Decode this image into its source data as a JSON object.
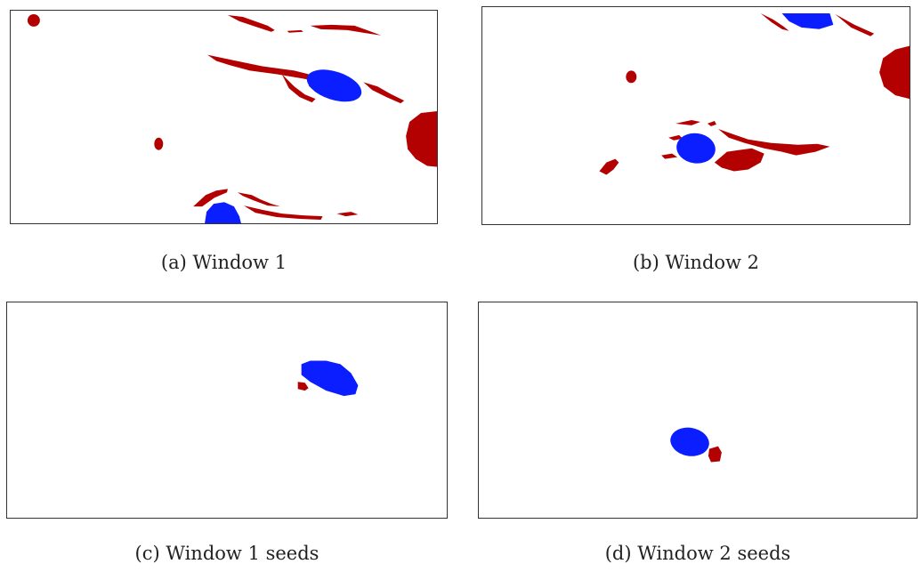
{
  "colors": {
    "vortex_red": "#b30000",
    "vortex_blue": "#0a1eff",
    "frame": "#333333"
  },
  "figures": [
    {
      "id": "a",
      "label": "(a)",
      "title": "Window 1"
    },
    {
      "id": "b",
      "label": "(b)",
      "title": "Window 2"
    },
    {
      "id": "c",
      "label": "(c)",
      "title": "Window 1 seeds"
    },
    {
      "id": "d",
      "label": "(d)",
      "title": "Window 2 seeds"
    }
  ]
}
